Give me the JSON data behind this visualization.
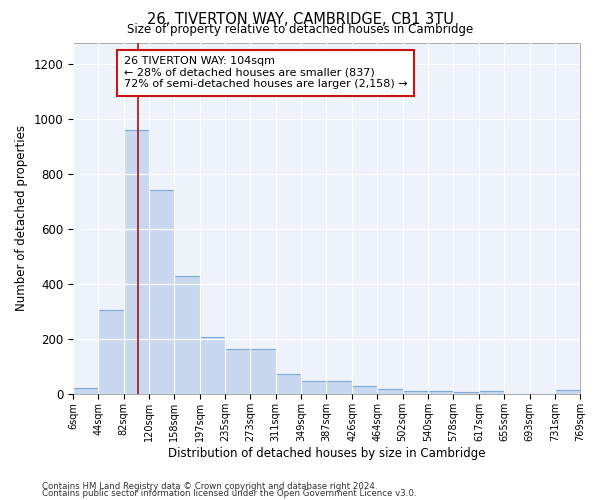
{
  "title": "26, TIVERTON WAY, CAMBRIDGE, CB1 3TU",
  "subtitle": "Size of property relative to detached houses in Cambridge",
  "xlabel": "Distribution of detached houses by size in Cambridge",
  "ylabel": "Number of detached properties",
  "bar_color": "#c8d8f0",
  "bar_edge_color": "#7ba8d4",
  "background_color": "#eef2fb",
  "annotation_text": "26 TIVERTON WAY: 104sqm\n← 28% of detached houses are smaller (837)\n72% of semi-detached houses are larger (2,158) →",
  "vline_x": 104,
  "vline_color": "#aa1111",
  "annotation_box_color": "#cc1111",
  "ylim": [
    0,
    1280
  ],
  "yticks": [
    0,
    200,
    400,
    600,
    800,
    1000,
    1200
  ],
  "bin_edges": [
    6,
    44,
    82,
    120,
    158,
    197,
    235,
    273,
    311,
    349,
    387,
    426,
    464,
    502,
    540,
    578,
    617,
    655,
    693,
    731,
    769
  ],
  "bar_heights": [
    25,
    308,
    960,
    742,
    432,
    210,
    165,
    165,
    75,
    50,
    50,
    30,
    18,
    12,
    12,
    10,
    12,
    0,
    0,
    15
  ],
  "tick_labels": [
    "6sqm",
    "44sqm",
    "82sqm",
    "120sqm",
    "158sqm",
    "197sqm",
    "235sqm",
    "273sqm",
    "311sqm",
    "349sqm",
    "387sqm",
    "426sqm",
    "464sqm",
    "502sqm",
    "540sqm",
    "578sqm",
    "617sqm",
    "655sqm",
    "693sqm",
    "731sqm",
    "769sqm"
  ],
  "footer_line1": "Contains HM Land Registry data © Crown copyright and database right 2024.",
  "footer_line2": "Contains public sector information licensed under the Open Government Licence v3.0."
}
